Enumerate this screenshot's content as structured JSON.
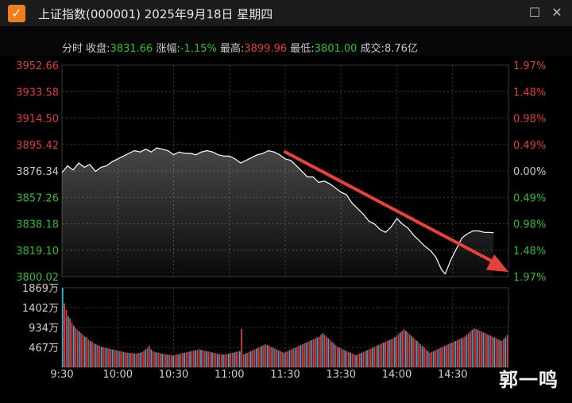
{
  "window": {
    "title": "上证指数(000001) 2025年9月18日 星期四",
    "icon": "check-icon",
    "maximize_icon": "maximize-icon",
    "close_icon": "close-icon"
  },
  "info": {
    "mode_label": "分时",
    "close_label": "收盘:",
    "close_value": "3831.66",
    "change_label": "涨幅:",
    "change_value": "-1.15%",
    "high_label": "最高:",
    "high_value": "3899.96",
    "low_label": "最低:",
    "low_value": "3801.00",
    "volume_label": "成交:",
    "volume_value": "8.76亿"
  },
  "colors": {
    "up": "#e23c3c",
    "down": "#2fbf2f",
    "line": "#ffffff",
    "arrow": "#e8403a",
    "grid": "#3a3a3a"
  },
  "chart_data": {
    "type": "line",
    "price_axis": {
      "ticks": [
        "3952.66",
        "3933.58",
        "3914.50",
        "3895.42",
        "3876.34",
        "3857.26",
        "3838.18",
        "3819.10",
        "3800.02"
      ],
      "tick_colors": [
        "red",
        "red",
        "red",
        "red",
        "grey",
        "green",
        "green",
        "green",
        "green"
      ]
    },
    "pct_axis": {
      "ticks": [
        "1.97%",
        "1.48%",
        "0.98%",
        "0.49%",
        "0.00%",
        "0.49%",
        "0.98%",
        "1.48%",
        "1.97%"
      ],
      "tick_colors": [
        "red",
        "red",
        "red",
        "red",
        "grey",
        "green",
        "green",
        "green",
        "green"
      ]
    },
    "volume_axis": {
      "ticks": [
        "1869万",
        "1402万",
        "934万",
        "467万"
      ]
    },
    "x_ticks": [
      "9:30",
      "10:00",
      "10:30",
      "11:00",
      "11:30",
      "13:30",
      "14:00",
      "14:30"
    ],
    "ylim": [
      3800.02,
      3952.66
    ],
    "price_series": [
      [
        0,
        3875
      ],
      [
        3,
        3880
      ],
      [
        6,
        3877
      ],
      [
        9,
        3882
      ],
      [
        12,
        3879
      ],
      [
        15,
        3881
      ],
      [
        18,
        3876
      ],
      [
        21,
        3879
      ],
      [
        24,
        3880
      ],
      [
        27,
        3883
      ],
      [
        30,
        3885
      ],
      [
        33,
        3887
      ],
      [
        36,
        3889
      ],
      [
        39,
        3891
      ],
      [
        42,
        3890
      ],
      [
        45,
        3892
      ],
      [
        48,
        3890
      ],
      [
        51,
        3893
      ],
      [
        54,
        3892
      ],
      [
        57,
        3891
      ],
      [
        60,
        3888
      ],
      [
        63,
        3890
      ],
      [
        66,
        3889
      ],
      [
        69,
        3889
      ],
      [
        72,
        3888
      ],
      [
        75,
        3890
      ],
      [
        78,
        3891
      ],
      [
        81,
        3890
      ],
      [
        84,
        3888
      ],
      [
        87,
        3887
      ],
      [
        90,
        3887
      ],
      [
        93,
        3885
      ],
      [
        96,
        3882
      ],
      [
        99,
        3884
      ],
      [
        102,
        3886
      ],
      [
        105,
        3888
      ],
      [
        108,
        3889
      ],
      [
        111,
        3891
      ],
      [
        114,
        3890
      ],
      [
        117,
        3888
      ],
      [
        120,
        3885
      ],
      [
        123,
        3884
      ],
      [
        126,
        3880
      ],
      [
        129,
        3876
      ],
      [
        132,
        3872
      ],
      [
        135,
        3872
      ],
      [
        138,
        3868
      ],
      [
        141,
        3869
      ],
      [
        144,
        3867
      ],
      [
        147,
        3864
      ],
      [
        150,
        3861
      ],
      [
        153,
        3859
      ],
      [
        156,
        3853
      ],
      [
        159,
        3849
      ],
      [
        162,
        3845
      ],
      [
        165,
        3840
      ],
      [
        168,
        3838
      ],
      [
        171,
        3834
      ],
      [
        174,
        3832
      ],
      [
        177,
        3836
      ],
      [
        180,
        3842
      ],
      [
        183,
        3838
      ],
      [
        186,
        3835
      ],
      [
        189,
        3830
      ],
      [
        192,
        3826
      ],
      [
        195,
        3822
      ],
      [
        198,
        3819
      ],
      [
        201,
        3814
      ],
      [
        204,
        3805
      ],
      [
        206,
        3802
      ],
      [
        209,
        3812
      ],
      [
        212,
        3820
      ],
      [
        215,
        3828
      ],
      [
        218,
        3831
      ],
      [
        221,
        3833
      ],
      [
        224,
        3833
      ],
      [
        227,
        3832
      ],
      [
        230,
        3832
      ],
      [
        232,
        3831.66
      ]
    ],
    "volume_series": [
      1869,
      1500,
      1350,
      1200,
      1150,
      1050,
      980,
      920,
      880,
      840,
      800,
      760,
      720,
      700,
      650,
      620,
      600,
      560,
      540,
      520,
      500,
      480,
      470,
      460,
      450,
      440,
      430,
      420,
      410,
      400,
      390,
      380,
      370,
      360,
      350,
      345,
      340,
      335,
      330,
      325,
      320,
      330,
      340,
      360,
      380,
      420,
      460,
      500,
      420,
      380,
      360,
      350,
      340,
      330,
      320,
      310,
      300,
      300,
      290,
      280,
      280,
      290,
      300,
      310,
      320,
      330,
      340,
      350,
      360,
      370,
      380,
      390,
      400,
      410,
      420,
      410,
      400,
      390,
      380,
      370,
      360,
      350,
      340,
      330,
      320,
      310,
      300,
      300,
      300,
      310,
      320,
      330,
      340,
      350,
      360,
      370,
      380,
      900,
      300,
      320,
      340,
      360,
      380,
      400,
      420,
      440,
      460,
      480,
      500,
      520,
      540,
      520,
      500,
      480,
      460,
      440,
      420,
      400,
      380,
      360,
      340,
      360,
      380,
      400,
      420,
      440,
      460,
      480,
      500,
      520,
      540,
      560,
      580,
      600,
      620,
      640,
      660,
      680,
      700,
      720,
      760,
      800,
      760,
      720,
      680,
      640,
      600,
      560,
      520,
      480,
      460,
      440,
      420,
      400,
      380,
      360,
      340,
      320,
      300,
      280,
      300,
      320,
      340,
      360,
      380,
      400,
      420,
      440,
      460,
      480,
      500,
      520,
      540,
      560,
      580,
      600,
      620,
      640,
      660,
      680,
      700,
      740,
      780,
      820,
      860,
      900,
      860,
      820,
      780,
      740,
      700,
      660,
      620,
      580,
      540,
      500,
      460,
      420,
      380,
      340,
      360,
      380,
      400,
      420,
      440,
      460,
      480,
      500,
      520,
      540,
      560,
      580,
      600,
      620,
      640,
      660,
      680,
      700,
      720,
      760,
      800,
      840,
      880,
      920,
      900,
      880,
      860,
      840,
      820,
      800,
      780,
      760,
      740,
      720,
      700,
      680,
      660,
      640,
      620,
      660,
      700,
      760
    ],
    "arrow": {
      "from": [
        120,
        3890
      ],
      "to": [
        240,
        3808
      ]
    }
  },
  "watermark": "郭一鸣"
}
